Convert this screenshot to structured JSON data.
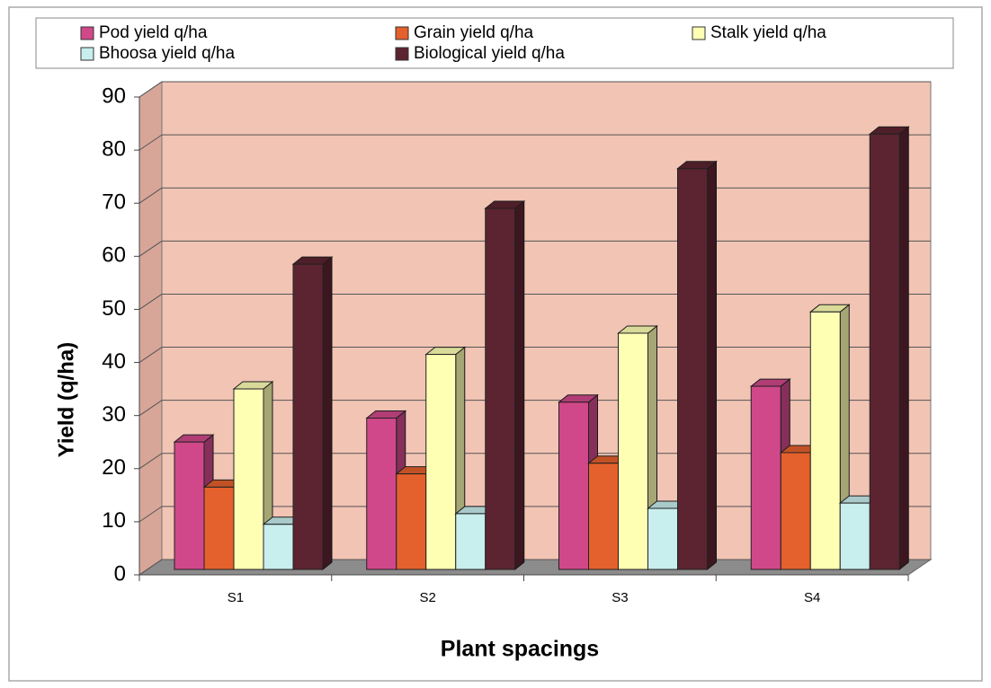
{
  "chart_data": {
    "type": "bar3d",
    "categories": [
      "S1",
      "S2",
      "S3",
      "S4"
    ],
    "series": [
      {
        "name": "Pod yield q/ha",
        "color": "#d0488a",
        "values": [
          24,
          28.5,
          31.5,
          34.5
        ]
      },
      {
        "name": "Grain yield q/ha",
        "color": "#e4602c",
        "values": [
          15.5,
          18,
          20,
          22
        ]
      },
      {
        "name": "Stalk yield q/ha",
        "color": "#ffffb4",
        "values": [
          34,
          40.5,
          44.5,
          48.5
        ]
      },
      {
        "name": "Bhoosa yield q/ha",
        "color": "#c8eeee",
        "values": [
          8.5,
          10.5,
          11.5,
          12.5
        ]
      },
      {
        "name": "Biological yield q/ha",
        "color": "#5c2430",
        "values": [
          57.5,
          68,
          75.5,
          82
        ]
      }
    ],
    "y_label": "Yield (q/ha)",
    "x_label": "Plant spacings",
    "ylim": [
      0,
      90
    ],
    "yticks": [
      0,
      10,
      20,
      30,
      40,
      50,
      60,
      70,
      80,
      90
    ],
    "grid": true
  }
}
